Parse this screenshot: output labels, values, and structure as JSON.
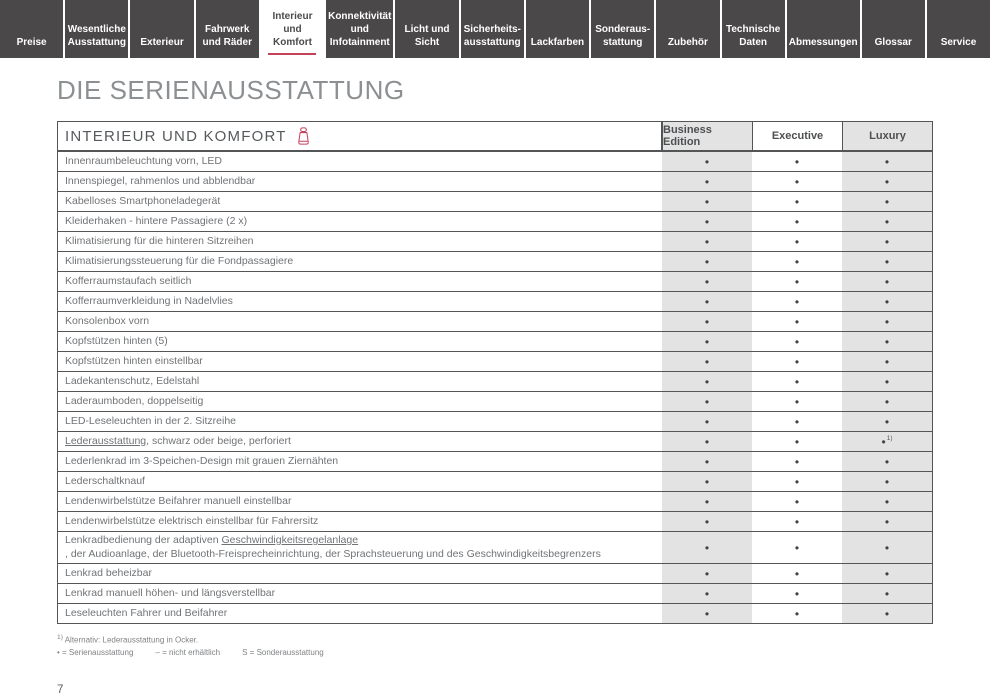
{
  "colors": {
    "accent_red": "#c5415a",
    "tab_dark": "#4b4849",
    "column_band": "#e3e3e3"
  },
  "tabs": {
    "items": [
      {
        "label": "Preise",
        "active": false
      },
      {
        "label": "Wesentliche Ausstattung",
        "active": false
      },
      {
        "label": "Exterieur",
        "active": false
      },
      {
        "label": "Fahrwerk und Räder",
        "active": false
      },
      {
        "label": "Interieur und Komfort",
        "active": true
      },
      {
        "label": "Konnektivität und Infotainment",
        "active": false
      },
      {
        "label": "Licht und Sicht",
        "active": false
      },
      {
        "label": "Sicherheits-ausstattung",
        "active": false
      },
      {
        "label": "Lackfarben",
        "active": false
      },
      {
        "label": "Sonderaus-stattung",
        "active": false
      },
      {
        "label": "Zubehör",
        "active": false
      },
      {
        "label": "Technische Daten",
        "active": false
      },
      {
        "label": "Abmessungen",
        "active": false
      },
      {
        "label": "Glossar",
        "active": false
      },
      {
        "label": "Service",
        "active": false
      }
    ]
  },
  "page": {
    "title": "DIE SERIENAUSSTATTUNG",
    "page_number": "7"
  },
  "table": {
    "section_title": "INTERIEUR UND KOMFORT",
    "section_icon": "seat-icon",
    "columns": [
      "Business Edition",
      "Executive",
      "Luxury"
    ],
    "rows": [
      {
        "label": [
          {
            "t": "Innenraumbeleuchtung vorn, LED"
          }
        ],
        "values": [
          "•",
          "•",
          "•"
        ]
      },
      {
        "label": [
          {
            "t": "Innenspiegel, rahmenlos und abblendbar"
          }
        ],
        "values": [
          "•",
          "•",
          "•"
        ]
      },
      {
        "label": [
          {
            "t": "Kabelloses Smartphoneladegerät"
          }
        ],
        "values": [
          "•",
          "•",
          "•"
        ]
      },
      {
        "label": [
          {
            "t": "Kleiderhaken - hintere Passagiere (2 x)"
          }
        ],
        "values": [
          "•",
          "•",
          "•"
        ]
      },
      {
        "label": [
          {
            "t": "Klimatisierung für die hinteren Sitzreihen"
          }
        ],
        "values": [
          "•",
          "•",
          "•"
        ]
      },
      {
        "label": [
          {
            "t": "Klimatisierungssteuerung für die Fondpassagiere"
          }
        ],
        "values": [
          "•",
          "•",
          "•"
        ]
      },
      {
        "label": [
          {
            "t": "Kofferraumstaufach seitlich"
          }
        ],
        "values": [
          "•",
          "•",
          "•"
        ]
      },
      {
        "label": [
          {
            "t": "Kofferraumverkleidung in Nadelvlies"
          }
        ],
        "values": [
          "•",
          "•",
          "•"
        ]
      },
      {
        "label": [
          {
            "t": "Konsolenbox vorn"
          }
        ],
        "values": [
          "•",
          "•",
          "•"
        ]
      },
      {
        "label": [
          {
            "t": "Kopfstützen hinten (5)"
          }
        ],
        "values": [
          "•",
          "•",
          "•"
        ]
      },
      {
        "label": [
          {
            "t": "Kopfstützen hinten einstellbar"
          }
        ],
        "values": [
          "•",
          "•",
          "•"
        ]
      },
      {
        "label": [
          {
            "t": "Ladekantenschutz, Edelstahl"
          }
        ],
        "values": [
          "•",
          "•",
          "•"
        ]
      },
      {
        "label": [
          {
            "t": "Laderaumboden, doppelseitig"
          }
        ],
        "values": [
          "•",
          "•",
          "•"
        ]
      },
      {
        "label": [
          {
            "t": "LED-Leseleuchten in der 2. Sitzreihe"
          }
        ],
        "values": [
          "•",
          "•",
          "•"
        ]
      },
      {
        "label": [
          {
            "t": "Lederausstattung",
            "u": true
          },
          {
            "t": ", schwarz oder beige, perforiert"
          }
        ],
        "values": [
          "•",
          "•",
          "•"
        ],
        "sup": [
          null,
          null,
          "1)"
        ]
      },
      {
        "label": [
          {
            "t": "Lederlenkrad im 3-Speichen-Design mit grauen Ziernähten"
          }
        ],
        "values": [
          "•",
          "•",
          "•"
        ]
      },
      {
        "label": [
          {
            "t": "Lederschaltknauf"
          }
        ],
        "values": [
          "•",
          "•",
          "•"
        ]
      },
      {
        "label": [
          {
            "t": "Lendenwirbelstütze Beifahrer manuell einstellbar"
          }
        ],
        "values": [
          "•",
          "•",
          "•"
        ]
      },
      {
        "label": [
          {
            "t": "Lendenwirbelstütze elektrisch einstellbar für Fahrersitz"
          }
        ],
        "values": [
          "•",
          "•",
          "•"
        ]
      },
      {
        "label": [
          {
            "t": "Lenkradbedienung der adaptiven "
          },
          {
            "t": "Geschwindigkeitsregelanlage",
            "u": true
          },
          {
            "t": ", der Audioanlage, der Bluetooth-Freisprecheinrichtung, der Sprachsteuerung und des Geschwindigkeitsbegrenzers"
          }
        ],
        "values": [
          "•",
          "•",
          "•"
        ]
      },
      {
        "label": [
          {
            "t": "Lenkrad beheizbar"
          }
        ],
        "values": [
          "•",
          "•",
          "•"
        ]
      },
      {
        "label": [
          {
            "t": "Lenkrad manuell höhen- und längsverstellbar"
          }
        ],
        "values": [
          "•",
          "•",
          "•"
        ]
      },
      {
        "label": [
          {
            "t": "Leseleuchten Fahrer und Beifahrer"
          }
        ],
        "values": [
          "•",
          "•",
          "•"
        ]
      }
    ]
  },
  "footnotes": {
    "note1_sup": "1)",
    "note1": " Alternativ: Lederausstattung in Ocker.",
    "legend": [
      "• = Serienausstattung",
      "– = nicht erhältlich",
      "S = Sonderausstattung"
    ]
  }
}
